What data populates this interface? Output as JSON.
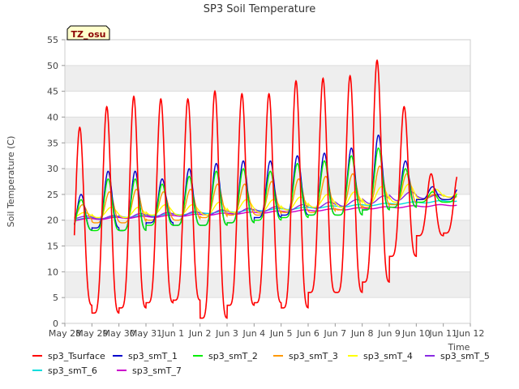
{
  "chart_data": {
    "type": "line",
    "title": "SP3 Soil Temperature",
    "xlabel": "Time",
    "ylabel": "Soil Temperature (C)",
    "site_label": "TZ_osu",
    "ylim": [
      0,
      55
    ],
    "yticks": [
      0,
      5,
      10,
      15,
      20,
      25,
      30,
      35,
      40,
      45,
      50,
      55
    ],
    "xlim": [
      0,
      15
    ],
    "xticks": [
      {
        "pos": 0,
        "label": "May 28"
      },
      {
        "pos": 1,
        "label": "May 29"
      },
      {
        "pos": 2,
        "label": "May 30"
      },
      {
        "pos": 3,
        "label": "May 31"
      },
      {
        "pos": 4,
        "label": "Jun 1"
      },
      {
        "pos": 5,
        "label": "Jun 2"
      },
      {
        "pos": 6,
        "label": "Jun 3"
      },
      {
        "pos": 7,
        "label": "Jun 4"
      },
      {
        "pos": 8,
        "label": "Jun 5"
      },
      {
        "pos": 9,
        "label": "Jun 6"
      },
      {
        "pos": 10,
        "label": "Jun 7"
      },
      {
        "pos": 11,
        "label": "Jun 8"
      },
      {
        "pos": 12,
        "label": "Jun 9"
      },
      {
        "pos": 13,
        "label": "Jun 10"
      },
      {
        "pos": 14,
        "label": "Jun 11"
      },
      {
        "pos": 15,
        "label": "Jun 12"
      }
    ],
    "x_start": 0.35,
    "x_end": 14.5,
    "series": [
      {
        "name": "sp3_Tsurface",
        "color": "#ff0000",
        "min": [
          3.5,
          2,
          3,
          4,
          4.5,
          1,
          3.5,
          4,
          3,
          6,
          6,
          8,
          13,
          17,
          17.5
        ],
        "max": [
          38,
          42,
          44,
          43.5,
          43.5,
          45,
          44.5,
          44.5,
          47,
          47.5,
          48,
          51,
          42,
          29
        ]
      },
      {
        "name": "sp3_smT_1",
        "color": "#0000cc",
        "min": [
          18,
          18.5,
          18,
          19.5,
          19,
          19,
          19.5,
          20.5,
          21,
          21,
          21,
          22,
          22.5,
          24,
          24
        ],
        "max": [
          25,
          29.5,
          29.5,
          28,
          30,
          31,
          31.5,
          31.5,
          32.5,
          33,
          34,
          36.5,
          31.5,
          26.5
        ]
      },
      {
        "name": "sp3_smT_2",
        "color": "#00ee00",
        "min": [
          18,
          18,
          18,
          19,
          19,
          19,
          19.5,
          20,
          20.5,
          21,
          21,
          22,
          22.5,
          23.5,
          23.5
        ],
        "max": [
          24,
          28,
          28,
          27,
          28.5,
          29.5,
          30,
          29.5,
          31,
          31.5,
          32.5,
          34,
          30,
          25.5
        ]
      },
      {
        "name": "sp3_smT_3",
        "color": "#ff9900",
        "min": [
          20,
          19.5,
          19.5,
          20,
          20,
          20.5,
          21,
          21,
          21.5,
          21.5,
          22,
          22.5,
          23,
          24,
          24
        ],
        "max": [
          23,
          25.5,
          26,
          25.5,
          26,
          27,
          27,
          27.5,
          28,
          28.5,
          29,
          30.5,
          29,
          25
        ]
      },
      {
        "name": "sp3_smT_4",
        "color": "#ffff00",
        "min": [
          20.5,
          20.5,
          20.5,
          21,
          21,
          21,
          21.5,
          21.5,
          22,
          22.5,
          22.5,
          23,
          23.5,
          24,
          24.5
        ],
        "max": [
          21.5,
          22.5,
          22.5,
          23,
          23,
          23.5,
          24,
          24,
          24.5,
          25,
          25.5,
          26.5,
          27,
          26
        ]
      },
      {
        "name": "sp3_smT_5",
        "color": "#8a2be2",
        "min": [
          20.3,
          20.2,
          20.4,
          20.6,
          20.8,
          21,
          21.2,
          21.6,
          21.9,
          22.3,
          22.7,
          23.2,
          23.8,
          24.2,
          24.4
        ],
        "max": [
          20.8,
          20.9,
          21.3,
          21.5,
          21.7,
          22,
          22.3,
          22.6,
          23,
          23.5,
          24,
          24.7,
          25.5,
          25
        ]
      },
      {
        "name": "sp3_smT_6",
        "color": "#00dddd",
        "start": 20.2,
        "end": 23.8
      },
      {
        "name": "sp3_smT_7",
        "color": "#cc00cc",
        "start": 20.1,
        "end": 23
      }
    ],
    "legend_position": "bottom"
  }
}
